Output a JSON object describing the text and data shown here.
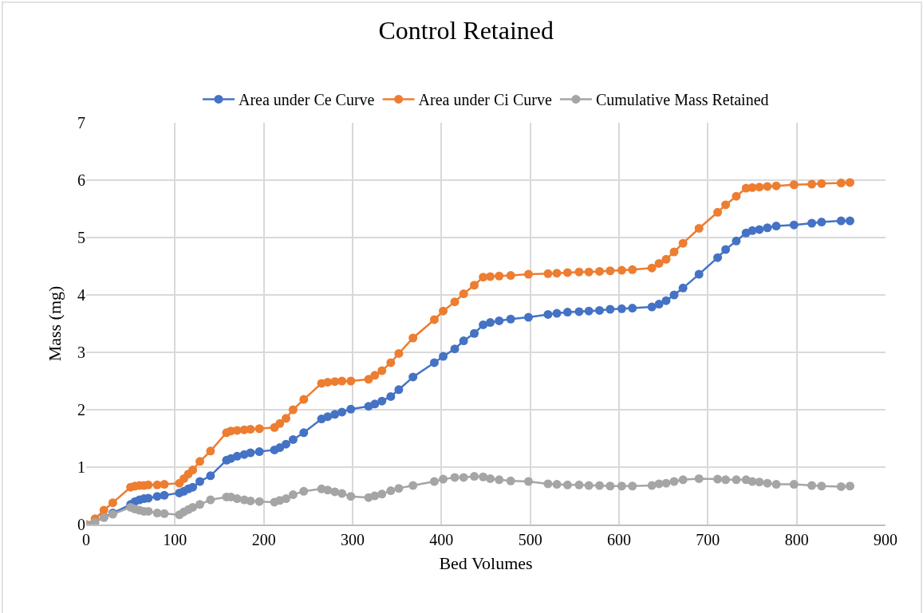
{
  "chart_data": {
    "type": "line",
    "title": "Control Retained",
    "xlabel": "Bed Volumes",
    "ylabel": "Mass (mg)",
    "x": [
      0,
      10,
      20,
      30,
      50,
      55,
      60,
      65,
      70,
      80,
      88,
      105,
      110,
      115,
      120,
      128,
      140,
      158,
      163,
      170,
      178,
      185,
      195,
      212,
      218,
      225,
      233,
      245,
      265,
      272,
      280,
      288,
      298,
      318,
      325,
      333,
      343,
      352,
      368,
      392,
      402,
      415,
      425,
      437,
      447,
      455,
      465,
      478,
      498,
      520,
      530,
      542,
      555,
      566,
      578,
      590,
      603,
      615,
      637,
      645,
      653,
      662,
      672,
      690,
      711,
      720,
      732,
      743,
      750,
      758,
      767,
      777,
      797,
      817,
      828,
      850,
      860
    ],
    "series": [
      {
        "name": "Area under Ce Curve",
        "color": "#4472c4",
        "values": [
          null,
          null,
          0.13,
          0.2,
          0.35,
          0.4,
          0.43,
          0.45,
          0.46,
          0.49,
          0.51,
          0.55,
          0.58,
          0.62,
          0.65,
          0.75,
          0.85,
          1.12,
          1.15,
          1.19,
          1.22,
          1.25,
          1.27,
          1.3,
          1.34,
          1.4,
          1.48,
          1.6,
          1.84,
          1.88,
          1.92,
          1.96,
          2.01,
          2.06,
          2.1,
          2.15,
          2.23,
          2.35,
          2.57,
          2.82,
          2.93,
          3.06,
          3.2,
          3.33,
          3.48,
          3.52,
          3.55,
          3.58,
          3.61,
          3.66,
          3.68,
          3.7,
          3.71,
          3.72,
          3.73,
          3.75,
          3.76,
          3.77,
          3.79,
          3.84,
          3.9,
          4.0,
          4.12,
          4.36,
          4.65,
          4.79,
          4.94,
          5.08,
          5.12,
          5.14,
          5.17,
          5.2,
          5.22,
          5.25,
          5.27,
          5.29,
          5.29
        ]
      },
      {
        "name": "Area under Ci Curve",
        "color": "#ed7d31",
        "values": [
          0,
          0.1,
          0.25,
          0.38,
          0.65,
          0.67,
          0.68,
          0.68,
          0.69,
          0.69,
          0.7,
          0.72,
          0.8,
          0.88,
          0.95,
          1.1,
          1.28,
          1.6,
          1.63,
          1.64,
          1.65,
          1.66,
          1.67,
          1.69,
          1.76,
          1.85,
          2.0,
          2.18,
          2.46,
          2.48,
          2.49,
          2.5,
          2.5,
          2.53,
          2.6,
          2.68,
          2.82,
          2.98,
          3.25,
          3.57,
          3.72,
          3.88,
          4.02,
          4.17,
          4.31,
          4.32,
          4.33,
          4.34,
          4.36,
          4.37,
          4.38,
          4.39,
          4.4,
          4.4,
          4.41,
          4.42,
          4.43,
          4.44,
          4.47,
          4.55,
          4.62,
          4.75,
          4.9,
          5.16,
          5.44,
          5.57,
          5.72,
          5.86,
          5.87,
          5.88,
          5.89,
          5.9,
          5.92,
          5.93,
          5.94,
          5.95,
          5.96
        ]
      },
      {
        "name": "Cumulative Mass Retained",
        "color": "#a5a5a5",
        "values": [
          0,
          0.04,
          0.12,
          0.18,
          0.3,
          0.27,
          0.25,
          0.23,
          0.23,
          0.2,
          0.19,
          0.17,
          0.22,
          0.26,
          0.3,
          0.35,
          0.43,
          0.48,
          0.48,
          0.45,
          0.43,
          0.41,
          0.4,
          0.39,
          0.42,
          0.45,
          0.52,
          0.58,
          0.62,
          0.6,
          0.57,
          0.54,
          0.49,
          0.47,
          0.5,
          0.53,
          0.59,
          0.63,
          0.68,
          0.75,
          0.79,
          0.82,
          0.82,
          0.84,
          0.83,
          0.8,
          0.78,
          0.76,
          0.75,
          0.71,
          0.7,
          0.69,
          0.69,
          0.68,
          0.68,
          0.67,
          0.67,
          0.67,
          0.68,
          0.71,
          0.72,
          0.75,
          0.78,
          0.8,
          0.79,
          0.78,
          0.78,
          0.78,
          0.75,
          0.74,
          0.72,
          0.7,
          0.7,
          0.68,
          0.67,
          0.66,
          0.67
        ]
      }
    ],
    "xlim": [
      0,
      900
    ],
    "xticks": [
      0,
      100,
      200,
      300,
      400,
      500,
      600,
      700,
      800,
      900
    ],
    "ylim": [
      0,
      7
    ],
    "yticks": [
      0,
      1,
      2,
      3,
      4,
      5,
      6,
      7
    ],
    "grid": true,
    "legend": "top",
    "marker": "circle",
    "line_style": "solid"
  }
}
